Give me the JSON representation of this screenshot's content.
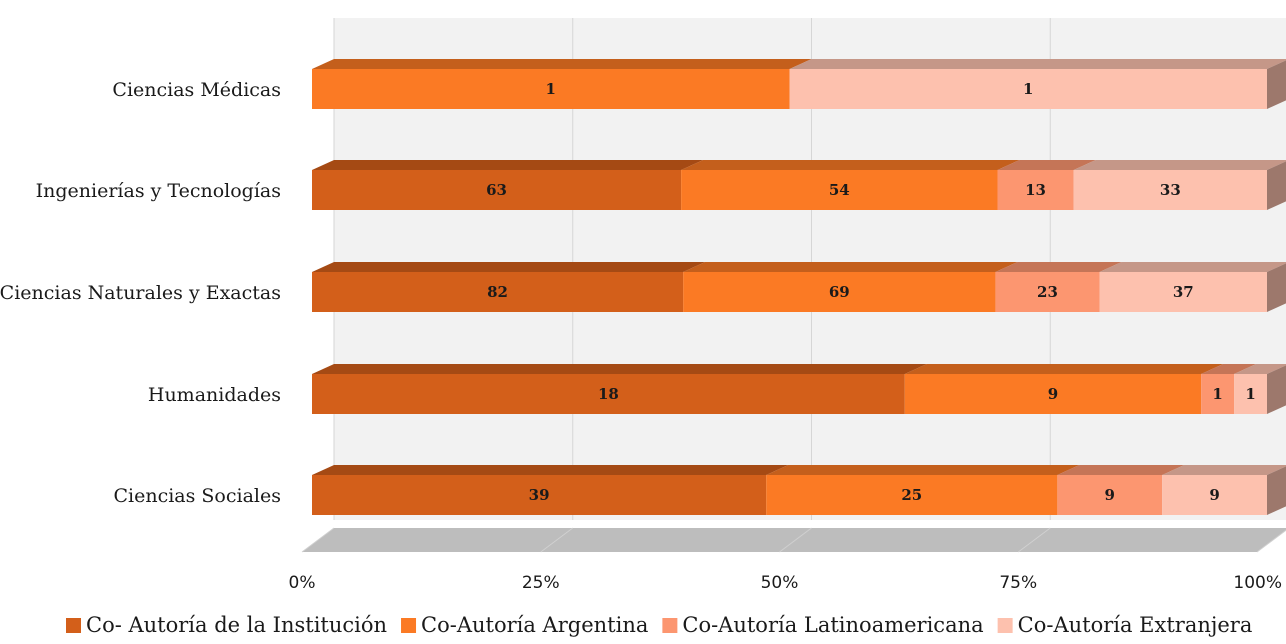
{
  "chart_data": {
    "type": "bar",
    "orientation": "horizontal",
    "stacked": "percent",
    "three_d": true,
    "title": "",
    "xlabel": "",
    "ylabel": "",
    "xlim": [
      0,
      100
    ],
    "x_ticks": [
      "0%",
      "25%",
      "50%",
      "75%",
      "100%"
    ],
    "grid": true,
    "legend_position": "bottom",
    "categories": [
      "Ciencias Médicas",
      "Ingenierías y Tecnologías",
      "Ciencias Naturales y Exactas",
      "Humanidades",
      "Ciencias Sociales"
    ],
    "series": [
      {
        "name": "Co- Autoría de la Institución",
        "color": "#D35F1A",
        "values": [
          0,
          63,
          82,
          18,
          39
        ]
      },
      {
        "name": "Co-Autoría Argentina",
        "color": "#FB7A24",
        "values": [
          1,
          54,
          69,
          9,
          25
        ]
      },
      {
        "name": "Co-Autoría Latinoamericana",
        "color": "#FC9670",
        "values": [
          0,
          13,
          23,
          1,
          9
        ]
      },
      {
        "name": "Co-Autoría Extranjera",
        "color": "#FDC1AE",
        "values": [
          1,
          33,
          37,
          1,
          9
        ]
      }
    ]
  }
}
